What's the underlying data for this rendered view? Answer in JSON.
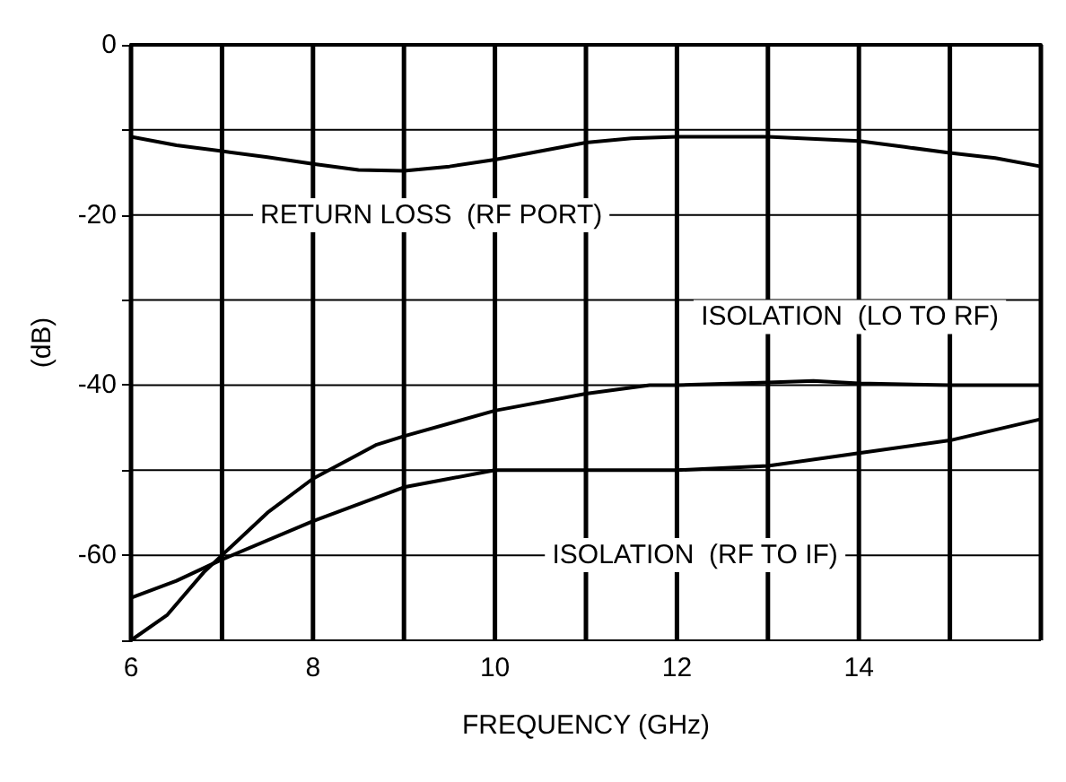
{
  "chart_data": {
    "type": "line",
    "xlabel": "FREQUENCY (GHz)",
    "ylabel": "(dB)",
    "xlim": [
      6,
      16
    ],
    "xticks": [
      6,
      {
        "value": 7,
        "label": null
      },
      8,
      {
        "value": 9,
        "label": null
      },
      10,
      {
        "value": 11,
        "label": null
      },
      12,
      {
        "value": 13,
        "label": null
      },
      14,
      {
        "value": 15,
        "label": null
      },
      {
        "value": 16,
        "label": null
      }
    ],
    "ylim": [
      -70,
      0
    ],
    "yticks": [
      {
        "value": -70,
        "label": null
      },
      -60,
      {
        "value": -50,
        "label": null
      },
      -40,
      {
        "value": -30,
        "label": null
      },
      -20,
      {
        "value": -10,
        "label": null
      },
      0
    ],
    "grid": true,
    "marker": "none",
    "line_style": "solid",
    "series": [
      {
        "name": "RETURN LOSS  (RF PORT)",
        "color": "#000000",
        "x": [
          6,
          6.5,
          7,
          7.5,
          8,
          8.5,
          9,
          9.5,
          10,
          10.5,
          11,
          11.5,
          12,
          13,
          14,
          14.5,
          15,
          15.5,
          16
        ],
        "values": [
          -10.8,
          -11.8,
          -12.5,
          -13.2,
          -14,
          -14.7,
          -14.8,
          -14.3,
          -13.5,
          -12.5,
          -11.5,
          -11,
          -10.8,
          -10.8,
          -11.3,
          -12,
          -12.7,
          -13.3,
          -14.3
        ]
      },
      {
        "name": "ISOLATION  (LO TO RF)",
        "color": "#000000",
        "x": [
          6,
          6.4,
          6.8,
          7,
          7.5,
          8,
          8.7,
          9,
          10,
          11,
          11.7,
          12,
          13,
          13.5,
          14,
          15,
          16
        ],
        "values": [
          -70,
          -67,
          -62,
          -60,
          -55,
          -51,
          -47,
          -46,
          -43,
          -41,
          -40,
          -40,
          -39.7,
          -39.5,
          -39.8,
          -40,
          -40
        ]
      },
      {
        "name": "ISOLATION  (RF TO IF)",
        "color": "#000000",
        "x": [
          6,
          6.5,
          7,
          8,
          9,
          9.5,
          10,
          11,
          12,
          13,
          14,
          15,
          16
        ],
        "values": [
          -65,
          -63,
          -60.5,
          -56,
          -52,
          -51,
          -50,
          -50,
          -50,
          -49.5,
          -48,
          -46.5,
          -44
        ]
      }
    ]
  }
}
